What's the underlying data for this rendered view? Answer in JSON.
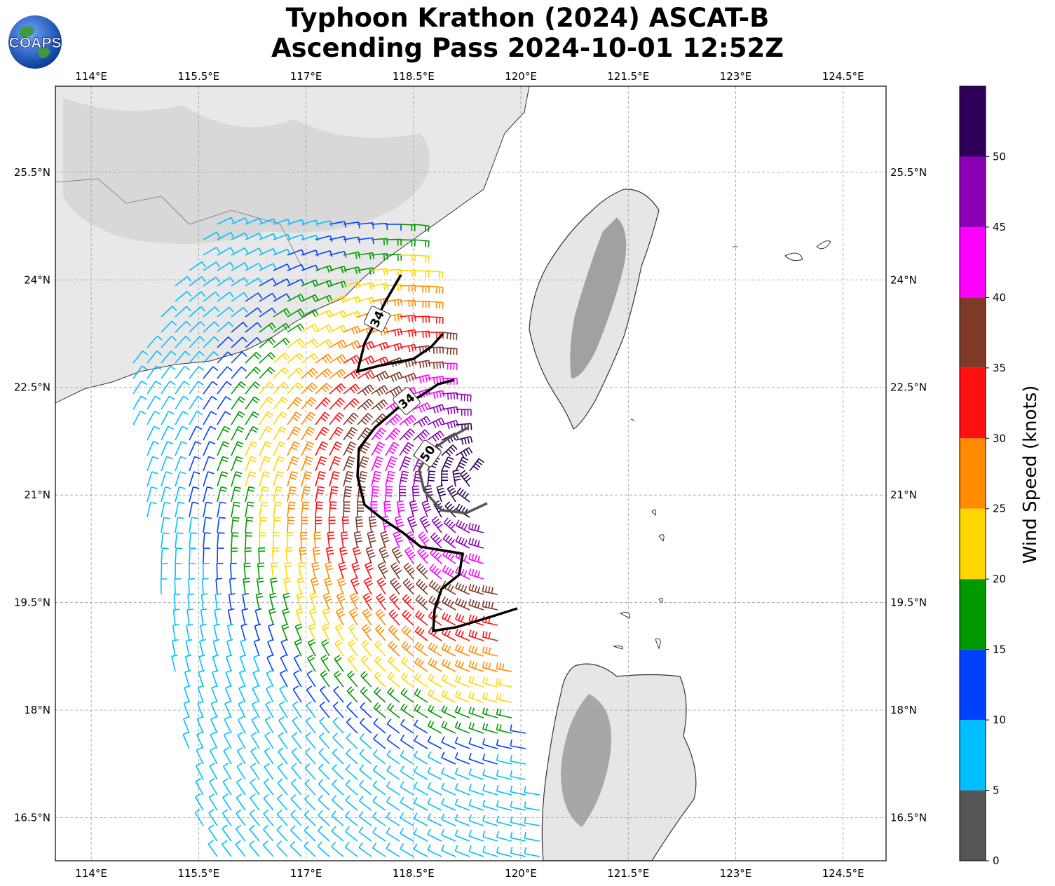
{
  "title": {
    "line1": "Typhoon Krathon (2024) ASCAT-B",
    "line2": "Ascending Pass 2024-10-01 12:52Z"
  },
  "logo": {
    "text": "COAPS",
    "icon": "earth-globe-logo"
  },
  "map": {
    "lon_ticks": [
      "114°E",
      "115.5°E",
      "117°E",
      "118.5°E",
      "120°E",
      "121.5°E",
      "123°E",
      "124.5°E"
    ],
    "lat_ticks": [
      "25.5°N",
      "24°N",
      "22.5°N",
      "21°N",
      "19.5°N",
      "18°N",
      "16.5°N"
    ],
    "lon_values": [
      114,
      115.5,
      117,
      118.5,
      120,
      121.5,
      123,
      124.5
    ],
    "lat_values": [
      25.5,
      24,
      22.5,
      21,
      19.5,
      18,
      16.5
    ],
    "extent": {
      "lon_min": 113.5,
      "lon_max": 125.1,
      "lat_min": 15.9,
      "lat_max": 26.7
    },
    "gridlines": true,
    "contours": [
      {
        "label": "34",
        "color": "#000000"
      },
      {
        "label": "34",
        "color": "#000000"
      },
      {
        "label": "50",
        "color": "#555555"
      }
    ],
    "storm_center": {
      "lon": 119.4,
      "lat": 21.3
    }
  },
  "colorbar": {
    "label": "Wind Speed (knots)",
    "ticks": [
      "0",
      "5",
      "10",
      "15",
      "20",
      "25",
      "30",
      "35",
      "40",
      "45",
      "50"
    ],
    "colors": [
      "#555555",
      "#00bfff",
      "#0040ff",
      "#009900",
      "#ffd700",
      "#ff8c00",
      "#ff1010",
      "#7f3a2a",
      "#ff00ff",
      "#8b00b3",
      "#2e005a"
    ],
    "range": [
      0,
      55
    ]
  }
}
